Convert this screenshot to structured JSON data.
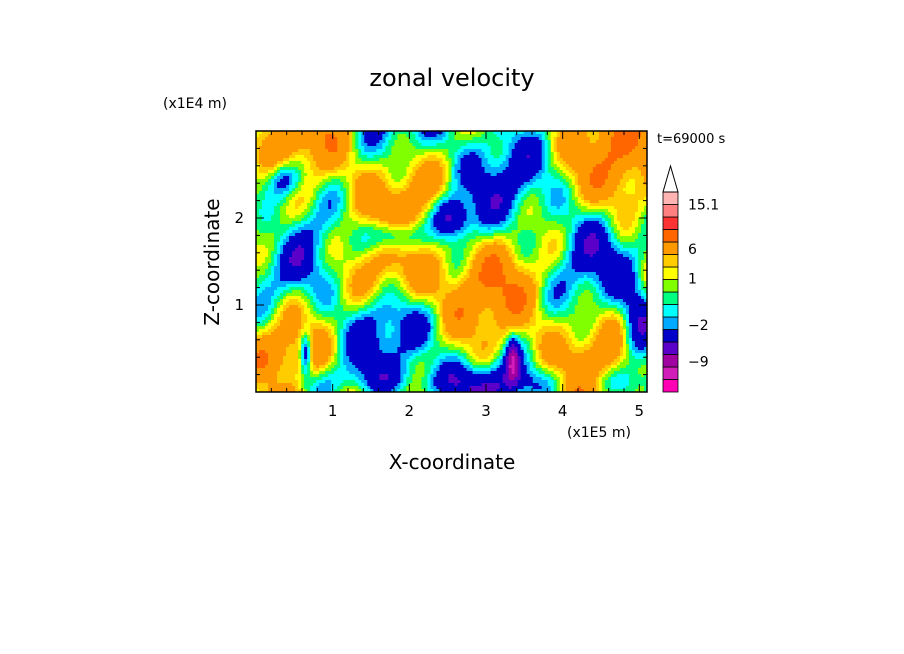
{
  "chart_data": {
    "type": "heatmap",
    "title": "zonal velocity",
    "xlabel": "X-coordinate",
    "ylabel": "Z-coordinate",
    "x_scale_label": "(x1E5 m)",
    "y_scale_label": "(x1E4 m)",
    "time_label": "t=69000 s",
    "xlim": [
      0,
      5.1
    ],
    "ylim": [
      0,
      3.0
    ],
    "x_ticks": [
      "1",
      "2",
      "3",
      "4",
      "5"
    ],
    "y_ticks": [
      "1",
      "2"
    ],
    "colorbar": {
      "labels": [
        "15.1",
        "6",
        "1",
        "-2",
        "-9"
      ],
      "levels": [
        -15,
        -12,
        -9,
        -6,
        -3,
        -2,
        -1,
        0,
        1,
        2,
        3,
        6,
        9,
        12,
        15.1
      ],
      "colors": [
        "#ff00b4",
        "#d21cb9",
        "#a000a0",
        "#5a00c8",
        "#0000c8",
        "#00aaff",
        "#00ffff",
        "#00ff80",
        "#80ff00",
        "#ffff00",
        "#ffcc00",
        "#ff9900",
        "#ff6600",
        "#ff3333",
        "#ff8080",
        "#ffb4b4"
      ],
      "extend": "max"
    }
  }
}
